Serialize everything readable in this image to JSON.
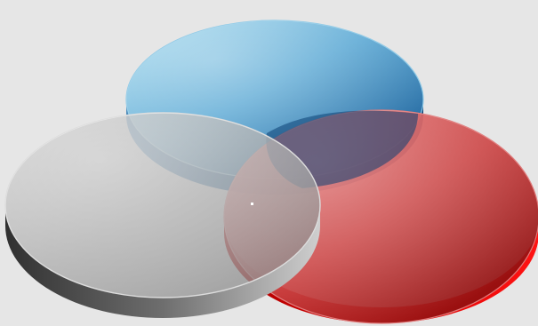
{
  "diagram": {
    "type": "venn",
    "sets": [
      {
        "id": "blue",
        "color": "#2f7fb8"
      },
      {
        "id": "red",
        "color": "#c41414"
      },
      {
        "id": "gray",
        "color": "#9a9a9a"
      }
    ]
  }
}
